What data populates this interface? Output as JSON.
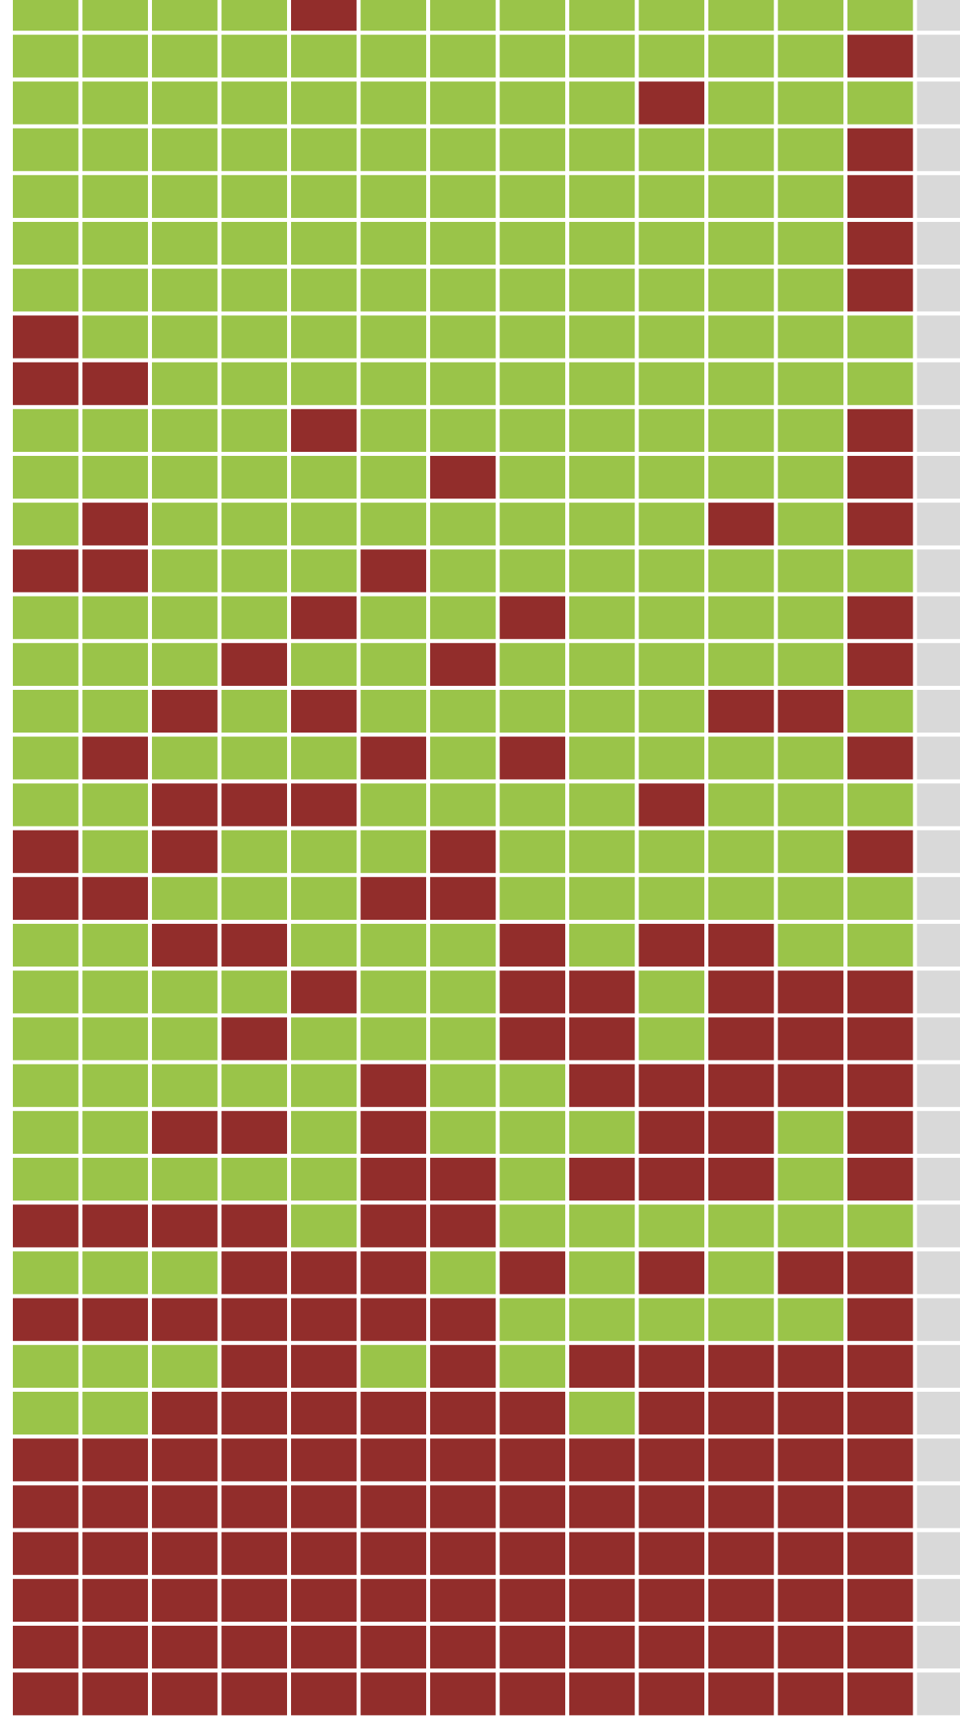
{
  "chart_data": {
    "type": "heatmap",
    "title": "",
    "xlabel": "",
    "ylabel": "",
    "legend": [],
    "colors": {
      "positive": "#9ac449",
      "negative": "#922d2b",
      "empty": "#d9d9d9",
      "background": "#ffffff"
    },
    "value_colors": {
      "0": "#9ac449",
      "1": "#922d2b",
      "-1": "#d9d9d9"
    },
    "partial_columns": 1,
    "grid": [
      [
        0,
        0,
        0,
        0,
        1,
        0,
        0,
        0,
        0,
        0,
        0,
        0,
        0,
        -1
      ],
      [
        0,
        0,
        0,
        0,
        0,
        0,
        0,
        0,
        0,
        0,
        0,
        0,
        1,
        -1
      ],
      [
        0,
        0,
        0,
        0,
        0,
        0,
        0,
        0,
        0,
        1,
        0,
        0,
        0,
        -1
      ],
      [
        0,
        0,
        0,
        0,
        0,
        0,
        0,
        0,
        0,
        0,
        0,
        0,
        1,
        -1
      ],
      [
        0,
        0,
        0,
        0,
        0,
        0,
        0,
        0,
        0,
        0,
        0,
        0,
        1,
        -1
      ],
      [
        0,
        0,
        0,
        0,
        0,
        0,
        0,
        0,
        0,
        0,
        0,
        0,
        1,
        -1
      ],
      [
        0,
        0,
        0,
        0,
        0,
        0,
        0,
        0,
        0,
        0,
        0,
        0,
        1,
        -1
      ],
      [
        1,
        0,
        0,
        0,
        0,
        0,
        0,
        0,
        0,
        0,
        0,
        0,
        0,
        -1
      ],
      [
        1,
        1,
        0,
        0,
        0,
        0,
        0,
        0,
        0,
        0,
        0,
        0,
        0,
        -1
      ],
      [
        0,
        0,
        0,
        0,
        1,
        0,
        0,
        0,
        0,
        0,
        0,
        0,
        1,
        -1
      ],
      [
        0,
        0,
        0,
        0,
        0,
        0,
        1,
        0,
        0,
        0,
        0,
        0,
        1,
        -1
      ],
      [
        0,
        1,
        0,
        0,
        0,
        0,
        0,
        0,
        0,
        0,
        1,
        0,
        1,
        -1
      ],
      [
        1,
        1,
        0,
        0,
        0,
        1,
        0,
        0,
        0,
        0,
        0,
        0,
        0,
        -1
      ],
      [
        0,
        0,
        0,
        0,
        1,
        0,
        0,
        1,
        0,
        0,
        0,
        0,
        1,
        -1
      ],
      [
        0,
        0,
        0,
        1,
        0,
        0,
        1,
        0,
        0,
        0,
        0,
        0,
        1,
        -1
      ],
      [
        0,
        0,
        1,
        0,
        1,
        0,
        0,
        0,
        0,
        0,
        1,
        1,
        0,
        -1
      ],
      [
        0,
        1,
        0,
        0,
        0,
        1,
        0,
        1,
        0,
        0,
        0,
        0,
        1,
        -1
      ],
      [
        0,
        0,
        1,
        1,
        1,
        0,
        0,
        0,
        0,
        1,
        0,
        0,
        0,
        -1
      ],
      [
        1,
        0,
        1,
        0,
        0,
        0,
        1,
        0,
        0,
        0,
        0,
        0,
        1,
        -1
      ],
      [
        1,
        1,
        0,
        0,
        0,
        1,
        1,
        0,
        0,
        0,
        0,
        0,
        0,
        -1
      ],
      [
        0,
        0,
        1,
        1,
        0,
        0,
        0,
        1,
        0,
        1,
        1,
        0,
        0,
        -1
      ],
      [
        0,
        0,
        0,
        0,
        1,
        0,
        0,
        1,
        1,
        0,
        1,
        1,
        1,
        -1
      ],
      [
        0,
        0,
        0,
        1,
        0,
        0,
        0,
        1,
        1,
        0,
        1,
        1,
        1,
        -1
      ],
      [
        0,
        0,
        0,
        0,
        0,
        1,
        0,
        0,
        1,
        1,
        1,
        1,
        1,
        -1
      ],
      [
        0,
        0,
        1,
        1,
        0,
        1,
        0,
        0,
        0,
        1,
        1,
        0,
        1,
        -1
      ],
      [
        0,
        0,
        0,
        0,
        0,
        1,
        1,
        0,
        1,
        1,
        1,
        0,
        1,
        -1
      ],
      [
        1,
        1,
        1,
        1,
        0,
        1,
        1,
        0,
        0,
        0,
        0,
        0,
        0,
        -1
      ],
      [
        0,
        0,
        0,
        1,
        1,
        1,
        0,
        1,
        0,
        1,
        0,
        1,
        1,
        -1
      ],
      [
        1,
        1,
        1,
        1,
        1,
        1,
        1,
        0,
        0,
        0,
        0,
        0,
        1,
        -1
      ],
      [
        0,
        0,
        0,
        1,
        1,
        0,
        1,
        0,
        1,
        1,
        1,
        1,
        1,
        -1
      ],
      [
        0,
        0,
        1,
        1,
        1,
        1,
        1,
        1,
        0,
        1,
        1,
        1,
        1,
        -1
      ],
      [
        1,
        1,
        1,
        1,
        1,
        1,
        1,
        1,
        1,
        1,
        1,
        1,
        1,
        -1
      ],
      [
        1,
        1,
        1,
        1,
        1,
        1,
        1,
        1,
        1,
        1,
        1,
        1,
        1,
        -1
      ],
      [
        1,
        1,
        1,
        1,
        1,
        1,
        1,
        1,
        1,
        1,
        1,
        1,
        1,
        -1
      ],
      [
        1,
        1,
        1,
        1,
        1,
        1,
        1,
        1,
        1,
        1,
        1,
        1,
        1,
        -1
      ],
      [
        1,
        1,
        1,
        1,
        1,
        1,
        1,
        1,
        1,
        1,
        1,
        1,
        1,
        -1
      ],
      [
        1,
        1,
        1,
        1,
        1,
        1,
        1,
        1,
        1,
        1,
        1,
        1,
        1,
        -1
      ]
    ]
  }
}
